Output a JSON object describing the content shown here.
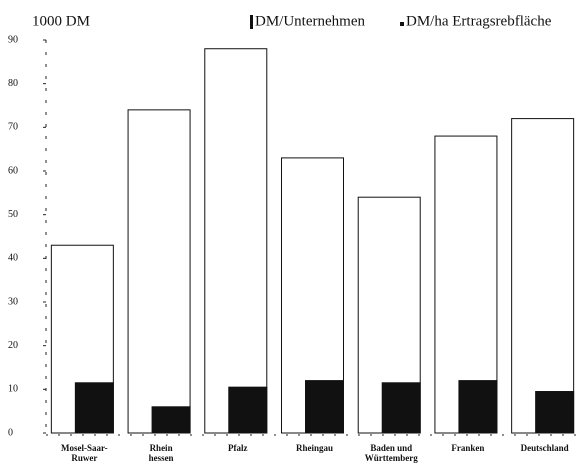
{
  "chart_data": {
    "type": "bar",
    "title": "1000 DM",
    "categories": [
      [
        "Mosel-Saar-",
        "Ruwer"
      ],
      [
        "Rhein",
        "hessen"
      ],
      [
        "Pfalz"
      ],
      [
        "Rheingau"
      ],
      [
        "Baden und",
        "Württemberg"
      ],
      [
        "Franken"
      ],
      [
        "Deutschland"
      ]
    ],
    "series": [
      {
        "name": "DM/Unternehmen",
        "color": "#ffffff",
        "values": [
          43,
          74,
          88,
          63,
          54,
          68,
          72
        ]
      },
      {
        "name": "DM/ha Ertragsrebfläche",
        "color": "#111111",
        "values": [
          11.5,
          6,
          10.5,
          12,
          11.5,
          12,
          9.5
        ]
      }
    ],
    "ylim": [
      0,
      90
    ],
    "yticks": [
      0,
      10,
      20,
      30,
      40,
      50,
      60,
      70,
      80,
      90
    ]
  }
}
